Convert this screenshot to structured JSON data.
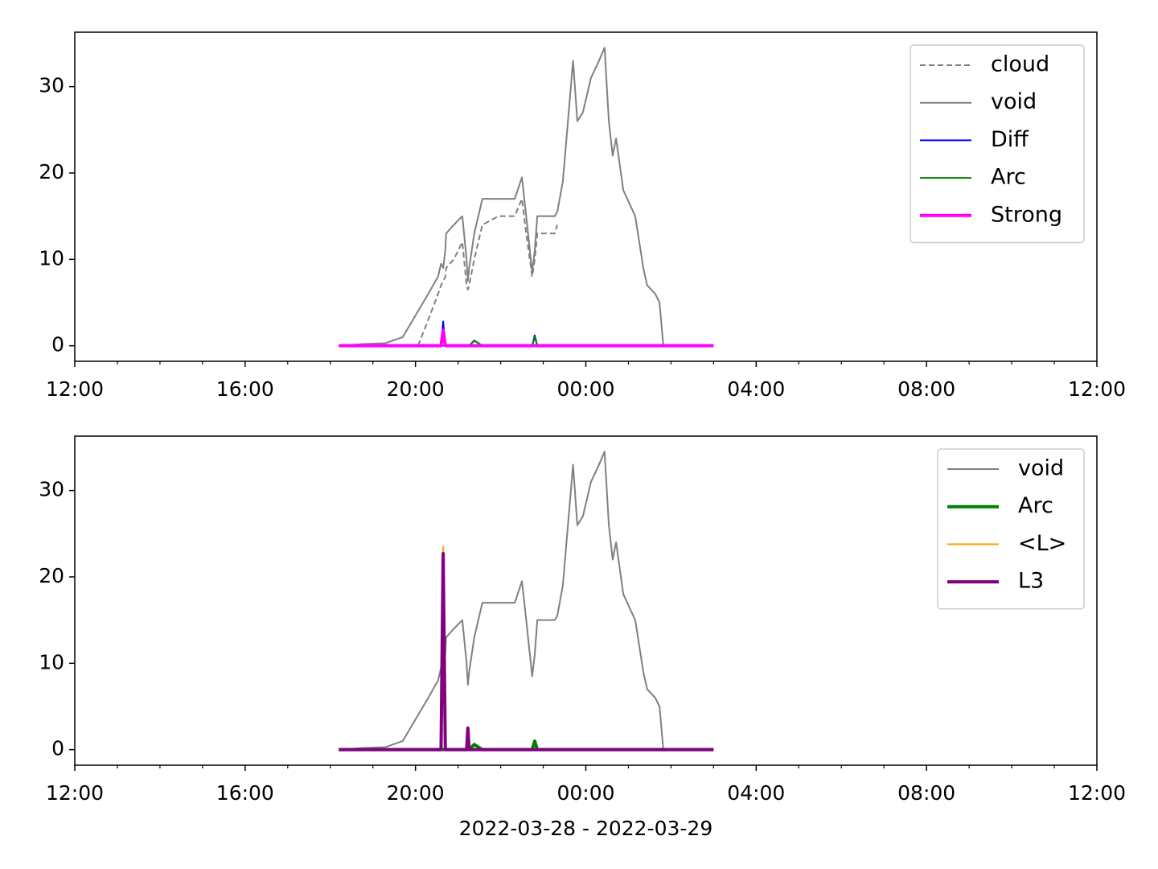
{
  "chart_data": [
    {
      "type": "line",
      "x": [
        18.2,
        18.8,
        19.3,
        19.7,
        20.06,
        20.3,
        20.53,
        20.6,
        20.65,
        20.7,
        20.72,
        20.9,
        21.1,
        21.2,
        21.23,
        21.26,
        21.38,
        21.57,
        21.95,
        22.33,
        22.5,
        22.6,
        22.74,
        22.8,
        22.86,
        23.27,
        23.33,
        23.46,
        23.7,
        23.8,
        23.93,
        24.12,
        24.31,
        24.44,
        24.54,
        24.63,
        24.71,
        24.88,
        25.16,
        25.35,
        25.44,
        25.63,
        25.73,
        25.82,
        26.0,
        27.0
      ],
      "series": [
        {
          "name": "cloud",
          "color": "#808080",
          "style": "dashed",
          "values": [
            null,
            null,
            null,
            null,
            0,
            3,
            6,
            7,
            7.5,
            8,
            9,
            10,
            12,
            7,
            6.5,
            7,
            10,
            14,
            15,
            15,
            17,
            13,
            8,
            10,
            13,
            13,
            14,
            null,
            null,
            null,
            null,
            null,
            null,
            null,
            null,
            null,
            null,
            null,
            null,
            null,
            null,
            null,
            null,
            null,
            null,
            null
          ]
        },
        {
          "name": "void",
          "color": "#808080",
          "style": "solid",
          "values": [
            0,
            0.2,
            0.3,
            1,
            4,
            6,
            8,
            9.5,
            9,
            11,
            13,
            14,
            15,
            10,
            7.5,
            9,
            13,
            17,
            17,
            17,
            19.5,
            15,
            8.5,
            11,
            15,
            15,
            15.5,
            19,
            33,
            26,
            27,
            31,
            33,
            34.5,
            26,
            22,
            24,
            18,
            15,
            9,
            7,
            6,
            5,
            0,
            0,
            null
          ]
        },
        {
          "name": "Diff",
          "color": "#0000ff",
          "style": "solid",
          "values": [
            0,
            0,
            0,
            0,
            0,
            0,
            0,
            0,
            2.8,
            0,
            0,
            0,
            0,
            0,
            0,
            0,
            0.6,
            0,
            0,
            0,
            0,
            0,
            0,
            1.2,
            0,
            0,
            0,
            0,
            0,
            0,
            0,
            0,
            0,
            0,
            0,
            0,
            0,
            0,
            0,
            0,
            0,
            0,
            0,
            0,
            0,
            0
          ]
        },
        {
          "name": "Arc",
          "color": "#008000",
          "style": "solid",
          "values": [
            0,
            0,
            0,
            0,
            0,
            0,
            0,
            0,
            0,
            0,
            0,
            0,
            0,
            0,
            0,
            0,
            0.6,
            0,
            0,
            0,
            0,
            0,
            0,
            1.0,
            0,
            0,
            0,
            0,
            0,
            0,
            0,
            0,
            0,
            0,
            0,
            0,
            0,
            0,
            0,
            0,
            0,
            0,
            0,
            0,
            0,
            0
          ]
        },
        {
          "name": "Strong",
          "color": "#ff00ff",
          "style": "thick",
          "values": [
            0,
            0,
            0,
            0,
            0,
            0,
            0,
            0,
            1.8,
            0,
            0,
            0,
            0,
            0,
            0,
            0,
            0,
            0,
            0,
            0,
            0,
            0,
            0,
            0,
            0,
            0,
            0,
            0,
            0,
            0,
            0,
            0,
            0,
            0,
            0,
            0,
            0,
            0,
            0,
            0,
            0,
            0,
            0,
            0,
            0,
            0
          ]
        }
      ],
      "xlim": [
        12,
        36
      ],
      "xticks": [
        {
          "value": 12,
          "label": "12:00"
        },
        {
          "value": 16,
          "label": "16:00"
        },
        {
          "value": 20,
          "label": "20:00"
        },
        {
          "value": 24,
          "label": "00:00"
        },
        {
          "value": 28,
          "label": "04:00"
        },
        {
          "value": 32,
          "label": "08:00"
        },
        {
          "value": 36,
          "label": "12:00"
        }
      ],
      "xminorticks": [
        13,
        14,
        15,
        17,
        18,
        19,
        21,
        22,
        23,
        25,
        26,
        27,
        29,
        30,
        31,
        33,
        34,
        35
      ],
      "ylim": [
        -1.8,
        36.3
      ],
      "yticks": [
        0,
        10,
        20,
        30
      ],
      "legend": "upper right"
    },
    {
      "type": "line",
      "x": [
        18.2,
        18.8,
        19.3,
        19.7,
        20.06,
        20.3,
        20.53,
        20.6,
        20.65,
        20.7,
        20.72,
        20.9,
        21.1,
        21.2,
        21.23,
        21.26,
        21.38,
        21.57,
        21.95,
        22.33,
        22.5,
        22.6,
        22.74,
        22.8,
        22.86,
        23.27,
        23.33,
        23.46,
        23.7,
        23.8,
        23.93,
        24.12,
        24.31,
        24.44,
        24.54,
        24.63,
        24.71,
        24.88,
        25.16,
        25.35,
        25.44,
        25.63,
        25.73,
        25.82,
        26.0,
        27.0
      ],
      "series": [
        {
          "name": "void",
          "color": "#808080",
          "style": "solid",
          "values": [
            0,
            0.2,
            0.3,
            1,
            4,
            6,
            8,
            9.5,
            9,
            11,
            13,
            14,
            15,
            10,
            7.5,
            9,
            13,
            17,
            17,
            17,
            19.5,
            15,
            8.5,
            11,
            15,
            15,
            15.5,
            19,
            33,
            26,
            27,
            31,
            33,
            34.5,
            26,
            22,
            24,
            18,
            15,
            9,
            7,
            6,
            5,
            0,
            0,
            null
          ]
        },
        {
          "name": "Arc",
          "color": "#008000",
          "style": "thick",
          "values": [
            0,
            0,
            0,
            0,
            0,
            0,
            0,
            0,
            0,
            0,
            0,
            0,
            0,
            0,
            0,
            0,
            0.6,
            0,
            0,
            0,
            0,
            0,
            0,
            1.0,
            0,
            0,
            0,
            0,
            0,
            0,
            0,
            0,
            0,
            0,
            0,
            0,
            0,
            0,
            0,
            0,
            0,
            0,
            0,
            0,
            0,
            0
          ]
        },
        {
          "name": "<L>",
          "color": "#ffa500",
          "style": "solid",
          "values": [
            0,
            0,
            0,
            0,
            0,
            0,
            0,
            0,
            23.5,
            0,
            0,
            0,
            0,
            0,
            2.3,
            0,
            0,
            0,
            0,
            0,
            0,
            0,
            0,
            0,
            0,
            0,
            0,
            0,
            0,
            0,
            0,
            0,
            0,
            0,
            0,
            0,
            0,
            0,
            0,
            0,
            0,
            0,
            0,
            0,
            0,
            0
          ]
        },
        {
          "name": "L3",
          "color": "#800080",
          "style": "thick",
          "values": [
            0,
            0,
            0,
            0,
            0,
            0,
            0,
            0,
            22.7,
            0,
            0,
            0,
            0,
            0,
            2.5,
            0,
            0,
            0,
            0,
            0,
            0,
            0,
            0,
            0,
            0,
            0,
            0,
            0,
            0,
            0,
            0,
            0,
            0,
            0,
            0,
            0,
            0,
            0,
            0,
            0,
            0,
            0,
            0,
            0,
            0,
            0
          ]
        }
      ],
      "xlim": [
        12,
        36
      ],
      "xticks": [
        {
          "value": 12,
          "label": "12:00"
        },
        {
          "value": 16,
          "label": "16:00"
        },
        {
          "value": 20,
          "label": "20:00"
        },
        {
          "value": 24,
          "label": "00:00"
        },
        {
          "value": 28,
          "label": "04:00"
        },
        {
          "value": 32,
          "label": "08:00"
        },
        {
          "value": 36,
          "label": "12:00"
        }
      ],
      "xminorticks": [
        13,
        14,
        15,
        17,
        18,
        19,
        21,
        22,
        23,
        25,
        26,
        27,
        29,
        30,
        31,
        33,
        34,
        35
      ],
      "xlabel": "2022-03-28 - 2022-03-29",
      "ylim": [
        -1.8,
        36.3
      ],
      "yticks": [
        0,
        10,
        20,
        30
      ],
      "legend": "upper right"
    }
  ]
}
